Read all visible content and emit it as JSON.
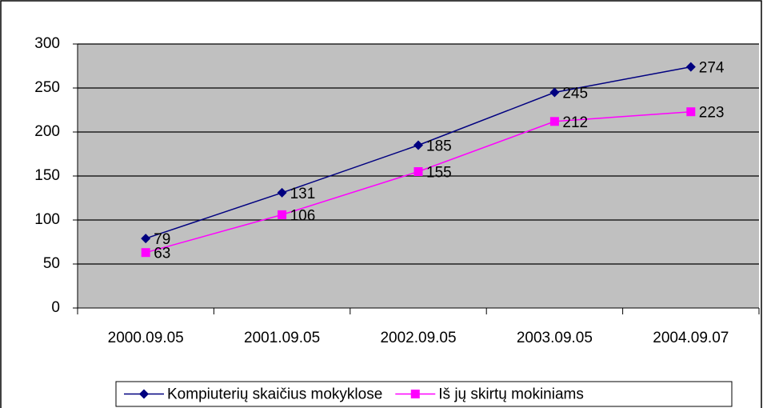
{
  "chart_data": {
    "type": "line",
    "categories": [
      "2000.09.05",
      "2001.09.05",
      "2002.09.05",
      "2003.09.05",
      "2004.09.07"
    ],
    "series": [
      {
        "name": "Kompiuterių skaičius mokyklose",
        "color": "#000080",
        "marker": "diamond",
        "values": [
          79,
          131,
          185,
          245,
          274
        ]
      },
      {
        "name": "Iš jų skirtų mokiniams",
        "color": "#ff00ff",
        "marker": "square",
        "values": [
          63,
          106,
          155,
          212,
          223
        ]
      }
    ],
    "ylim": [
      0,
      300
    ],
    "yticks": [
      0,
      50,
      100,
      150,
      200,
      250,
      300
    ],
    "grid": true,
    "legend": "bottom"
  }
}
